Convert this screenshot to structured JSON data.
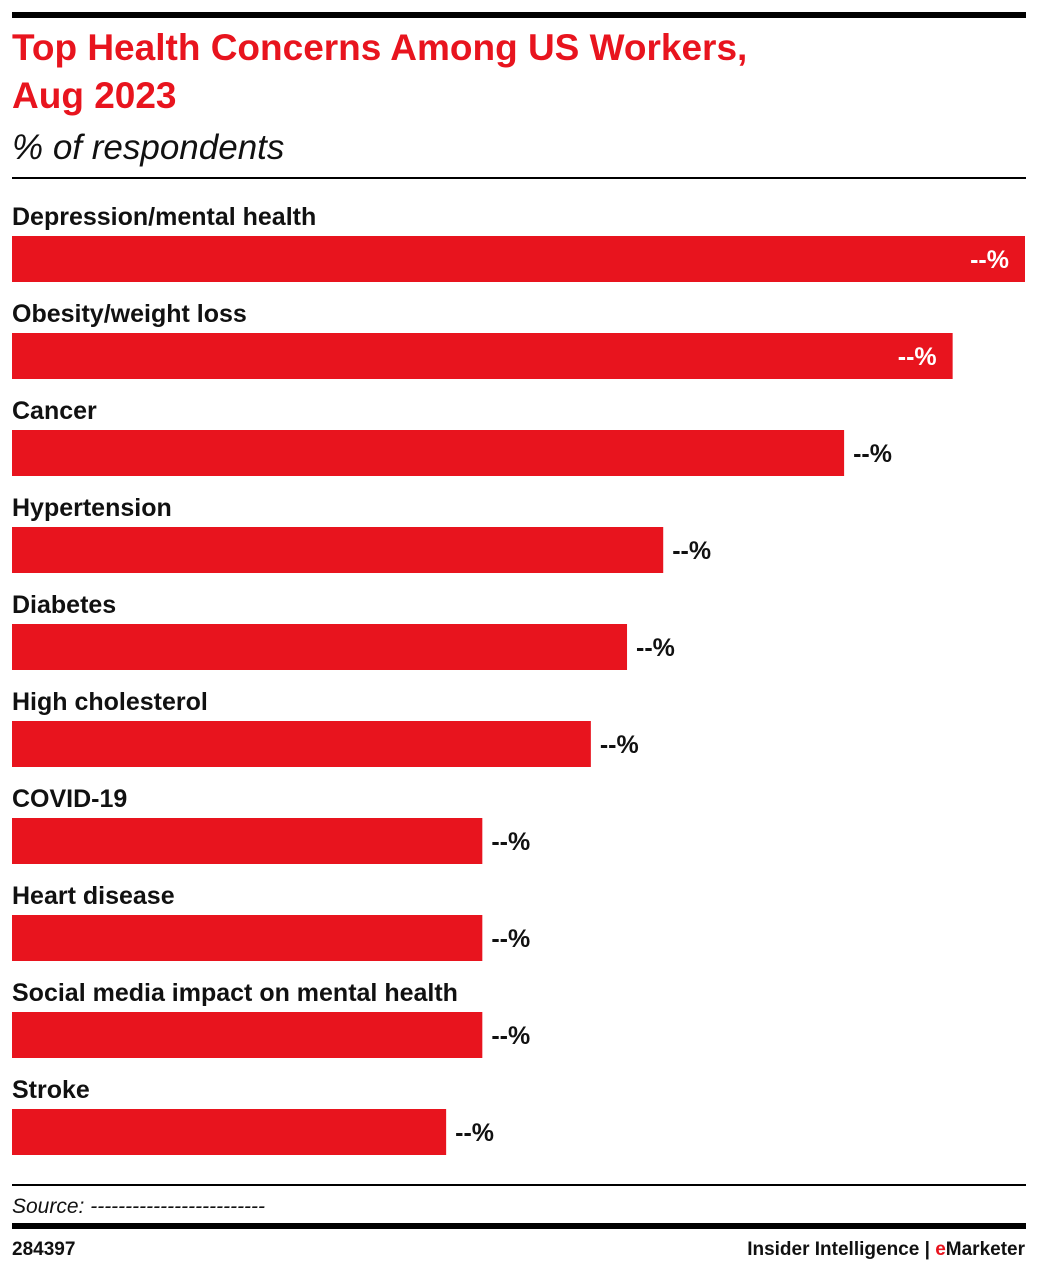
{
  "chart_data": {
    "type": "hbar",
    "title": [
      "Top Health Concerns Among US Workers,",
      "Aug 2023"
    ],
    "subtitle": "% of respondents",
    "categories": [
      "Depression/mental health",
      "Obesity/weight loss",
      "Cancer",
      "Hypertension",
      "Diabetes",
      "High cholesterol",
      "COVID-19",
      "Heart disease",
      "Social media impact on mental health",
      "Stroke"
    ],
    "values": [
      28,
      26,
      23,
      18,
      17,
      16,
      13,
      13,
      13,
      12
    ],
    "value_labels": [
      "--%",
      "--%",
      "--%",
      "--%",
      "--%",
      "--%",
      "--%",
      "--%",
      "--%",
      "--%"
    ],
    "color": "#e8141e",
    "source": "Source: -------------------------",
    "chart_id": "284397",
    "brand": {
      "left": "Insider Intelligence",
      "separator": "|",
      "accent": "e",
      "rest": "Marketer"
    }
  }
}
